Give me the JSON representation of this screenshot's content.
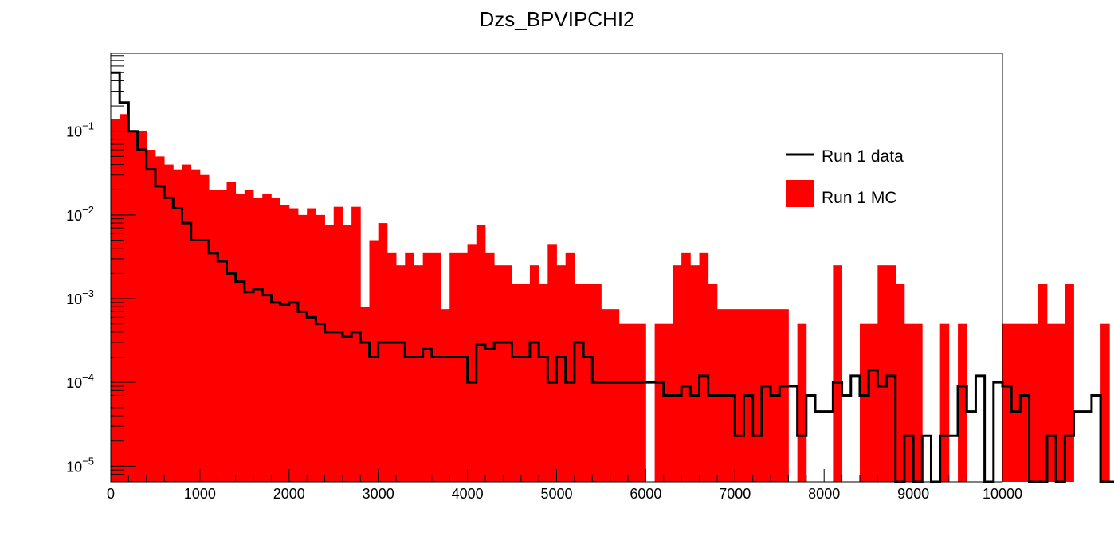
{
  "chart_data": {
    "type": "histogram",
    "title": "Dzs_BPVIPCHI2",
    "xlabel": "",
    "ylabel": "",
    "xlim": [
      0,
      10000
    ],
    "ylim": [
      6.5e-06,
      0.85
    ],
    "yscale": "log",
    "grid": false,
    "legend_position": "top-right",
    "bin_width": 100,
    "x_ticks": [
      "0",
      "1000",
      "2000",
      "3000",
      "4000",
      "5000",
      "6000",
      "7000",
      "8000",
      "9000",
      "10000"
    ],
    "y_ticks": [
      {
        "base": "10",
        "exp": "−1",
        "value": 0.1
      },
      {
        "base": "10",
        "exp": "−2",
        "value": 0.01
      },
      {
        "base": "10",
        "exp": "−3",
        "value": 0.001
      },
      {
        "base": "10",
        "exp": "−4",
        "value": 0.0001
      },
      {
        "base": "10",
        "exp": "−5",
        "value": 1e-05
      }
    ],
    "series": [
      {
        "name": "Run 1 MC",
        "style": "filled",
        "color": "#ff0000",
        "values": [
          0.14,
          0.16,
          0.1,
          0.1,
          0.06,
          0.05,
          0.04,
          0.035,
          0.04,
          0.035,
          0.03,
          0.02,
          0.02,
          0.025,
          0.018,
          0.02,
          0.016,
          0.018,
          0.016,
          0.013,
          0.012,
          0.01,
          0.012,
          0.01,
          0.0075,
          0.0125,
          0.0075,
          0.0125,
          0.0008,
          0.005,
          0.008,
          0.0035,
          0.0025,
          0.0035,
          0.0025,
          0.0035,
          0.0035,
          0.00075,
          0.0035,
          0.0035,
          0.0045,
          0.0075,
          0.0035,
          0.0025,
          0.0025,
          0.0015,
          0.0015,
          0.0025,
          0.0015,
          0.0045,
          0.0025,
          0.0035,
          0.0015,
          0.0015,
          0.0015,
          0.00075,
          0.00075,
          0.0005,
          0.0005,
          0.0005,
          0,
          0.0005,
          0.0005,
          0.0025,
          0.0035,
          0.0025,
          0.0035,
          0.0015,
          0.00075,
          0.00075,
          0.00075,
          0.00075,
          0.00075,
          0.00075,
          0.00075,
          0.00075,
          0,
          0.0005,
          0,
          0,
          0,
          0.0025,
          0,
          0,
          0.0005,
          0.0005,
          0.0025,
          0.0025,
          0.0015,
          0.0005,
          0.0005,
          0,
          0,
          0.0005,
          0,
          0.0005,
          0,
          0,
          0,
          0,
          0.0005,
          0.0005,
          0.0005,
          0.0005,
          0.0015,
          0.0005,
          0.0005,
          0.0015,
          0,
          0,
          0,
          0.0005,
          0,
          0,
          0,
          0,
          0,
          0,
          0.0005,
          0
        ]
      },
      {
        "name": "Run 1 data",
        "style": "step",
        "color": "#000000",
        "values": [
          0.5,
          0.22,
          0.1,
          0.06,
          0.035,
          0.022,
          0.016,
          0.012,
          0.008,
          0.005,
          0.005,
          0.0035,
          0.0028,
          0.002,
          0.0016,
          0.0012,
          0.0013,
          0.0011,
          0.0009,
          0.00085,
          0.0009,
          0.0007,
          0.0006,
          0.0005,
          0.0004,
          0.0004,
          0.00035,
          0.0004,
          0.0003,
          0.0002,
          0.0003,
          0.0003,
          0.0003,
          0.0002,
          0.0002,
          0.00025,
          0.0002,
          0.0002,
          0.0002,
          0.0002,
          0.0001,
          0.00028,
          0.00025,
          0.0003,
          0.0003,
          0.0002,
          0.0002,
          0.0003,
          0.0002,
          0.0001,
          0.0002,
          0.0001,
          0.0003,
          0.0002,
          0.0001,
          0.0001,
          0.0001,
          0.0001,
          0.0001,
          0.0001,
          0.0001,
          0.0001,
          7e-05,
          7e-05,
          9e-05,
          7e-05,
          0.00012,
          7e-05,
          7e-05,
          7e-05,
          2.3e-05,
          7e-05,
          2.3e-05,
          9e-05,
          7e-05,
          9e-05,
          9e-05,
          2.3e-05,
          7e-05,
          4.5e-05,
          4.5e-05,
          0.0001,
          7e-05,
          0.00012,
          7e-05,
          0.00014,
          9e-05,
          0.00012,
          6.5e-06,
          2.3e-05,
          6.5e-06,
          2.3e-05,
          6.5e-06,
          2.3e-05,
          2.3e-05,
          9e-05,
          4.5e-05,
          0.00012,
          6.5e-06,
          0.0001,
          9e-05,
          4.5e-05,
          7e-05,
          6.5e-06,
          6.5e-06,
          2.3e-05,
          6.5e-06,
          2.3e-05,
          4.5e-05,
          4.5e-05,
          7e-05,
          6.5e-06,
          6.5e-06,
          6.5e-06,
          6.5e-06,
          6.5e-06,
          6.5e-06,
          6.5e-06,
          6.5e-06,
          6.5e-06
        ]
      }
    ]
  }
}
